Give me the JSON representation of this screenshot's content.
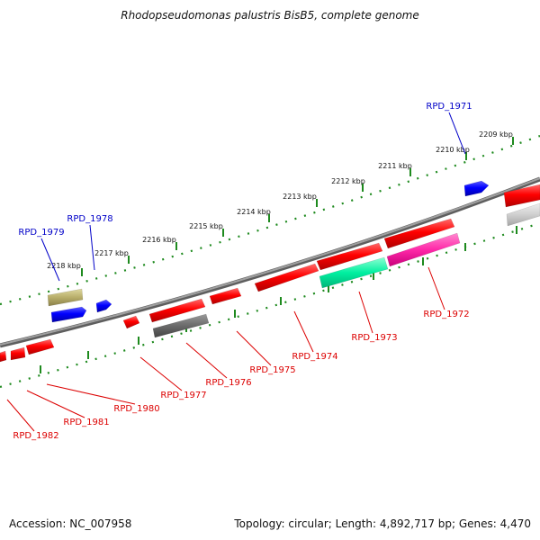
{
  "title": "Rhodopseudomonas palustris BisB5, complete genome",
  "footer": {
    "accession": "Accession: NC_007958",
    "summary": "Topology: circular; Length: 4,892,717 bp; Genes: 4,470"
  },
  "colors": {
    "backbone": "#808080",
    "tick": "#1e8a1e",
    "forward_label": "#0000c8",
    "reverse_label": "#dc0000"
  },
  "ticks": [
    "2209 kbp",
    "2210 kbp",
    "2211 kbp",
    "2212 kbp",
    "2213 kbp",
    "2214 kbp",
    "2215 kbp",
    "2216 kbp",
    "2217 kbp",
    "2218 kbp"
  ],
  "forward_labels": [
    "RPD_1971",
    "RPD_1978",
    "RPD_1979"
  ],
  "reverse_labels": [
    "RPD_1972",
    "RPD_1973",
    "RPD_1974",
    "RPD_1975",
    "RPD_1976",
    "RPD_1977",
    "RPD_1980",
    "RPD_1981",
    "RPD_1982"
  ]
}
